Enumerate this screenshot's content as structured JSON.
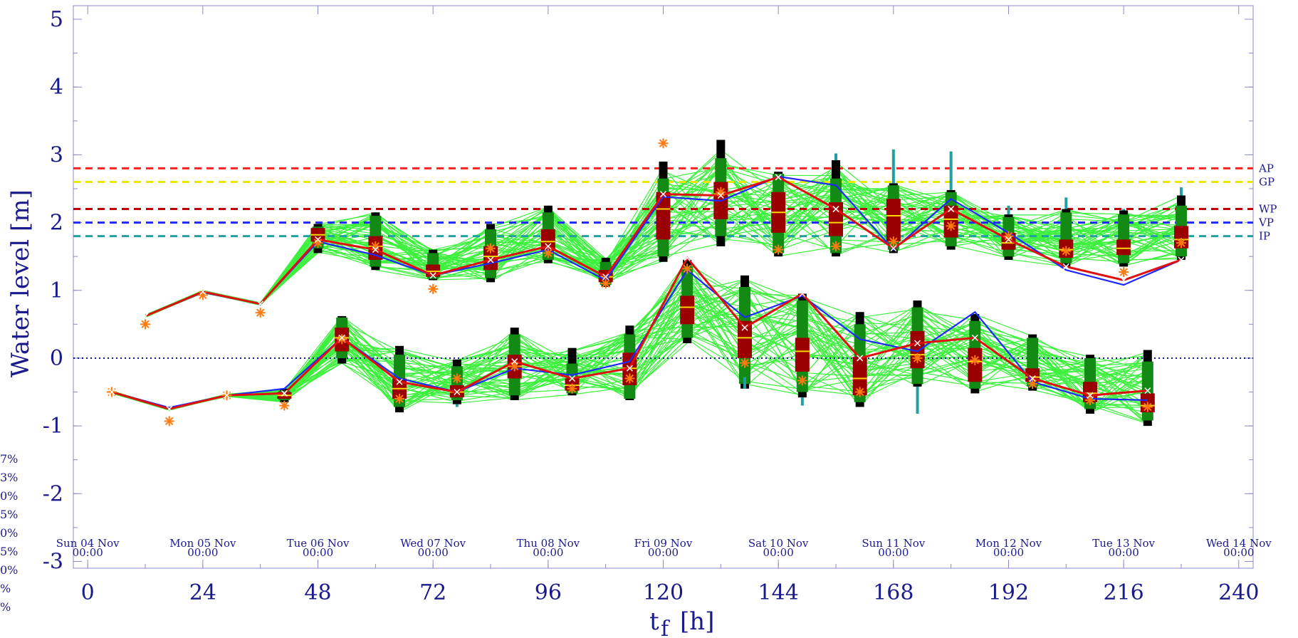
{
  "chart_data": {
    "type": "line",
    "title": "",
    "xlabel": "t",
    "xlabel_sub": "f",
    "xlabel_unit": "[h]",
    "ylabel": "Water level [m]",
    "xlim": [
      -3,
      243
    ],
    "ylim": [
      -3.1,
      5.2
    ],
    "xticks": [
      0,
      24,
      48,
      72,
      96,
      120,
      144,
      168,
      192,
      216,
      240
    ],
    "yticks": [
      -3,
      -2,
      -1,
      0,
      1,
      2,
      3,
      4,
      5
    ],
    "date_labels": [
      {
        "x": 0,
        "day": "Sun 04 Nov",
        "time": "00:00"
      },
      {
        "x": 24,
        "day": "Mon 05 Nov",
        "time": "00:00"
      },
      {
        "x": 48,
        "day": "Tue 06 Nov",
        "time": "00:00"
      },
      {
        "x": 72,
        "day": "Wed 07 Nov",
        "time": "00:00"
      },
      {
        "x": 96,
        "day": "Thu 08 Nov",
        "time": "00:00"
      },
      {
        "x": 120,
        "day": "Fri 09 Nov",
        "time": "00:00"
      },
      {
        "x": 144,
        "day": "Sat 10 Nov",
        "time": "00:00"
      },
      {
        "x": 168,
        "day": "Sun 11 Nov",
        "time": "00:00"
      },
      {
        "x": 192,
        "day": "Mon 12 Nov",
        "time": "00:00"
      },
      {
        "x": 216,
        "day": "Tue 13 Nov",
        "time": "00:00"
      },
      {
        "x": 240,
        "day": "Wed 14 Nov",
        "time": "00:00"
      }
    ],
    "thresholds": [
      {
        "label": "AP",
        "value": 2.8,
        "color": "#ff2020"
      },
      {
        "label": "GP",
        "value": 2.6,
        "color": "#e8e800"
      },
      {
        "label": "WP",
        "value": 2.2,
        "color": "#c00000"
      },
      {
        "label": "VP",
        "value": 2.0,
        "color": "#1e28ff"
      },
      {
        "label": "IP",
        "value": 1.8,
        "color": "#20a0a0"
      }
    ],
    "zero_line": {
      "value": 0,
      "color": "#1010a0"
    },
    "left_fragments": [
      "7%",
      "3%",
      "0%",
      "5%",
      "0%",
      "5%",
      "0%",
      "%",
      "%"
    ],
    "high_water": {
      "x": [
        12,
        24,
        36,
        48,
        60,
        72,
        84,
        96,
        108,
        120,
        132,
        144,
        156,
        168,
        180,
        192,
        204,
        216,
        228
      ],
      "red": [
        0.62,
        0.98,
        0.8,
        1.75,
        1.6,
        1.22,
        1.45,
        1.65,
        1.2,
        2.42,
        2.4,
        2.67,
        2.2,
        1.62,
        2.2,
        1.75,
        1.35,
        1.15,
        1.45
      ],
      "blue": [
        0.62,
        0.97,
        0.8,
        1.72,
        1.52,
        1.22,
        1.4,
        1.6,
        1.15,
        2.38,
        2.32,
        2.68,
        2.55,
        1.6,
        2.35,
        1.85,
        1.3,
        1.08,
        1.45
      ],
      "observed": [
        0.5,
        0.93,
        0.67,
        1.7,
        1.65,
        1.02,
        1.62,
        1.55,
        1.1,
        3.17,
        2.45,
        1.6,
        1.65,
        1.72,
        1.95,
        1.8,
        1.58,
        1.27,
        1.7
      ],
      "box": [
        null,
        null,
        null,
        [
          1.55,
          1.62,
          1.72,
          1.82,
          1.92,
          1.94,
          1.98
        ],
        [
          1.3,
          1.35,
          1.45,
          1.65,
          1.8,
          2.1,
          2.15
        ],
        [
          1.15,
          1.17,
          1.2,
          1.28,
          1.38,
          1.55,
          1.6
        ],
        [
          1.12,
          1.18,
          1.3,
          1.5,
          1.65,
          1.9,
          1.98
        ],
        [
          1.4,
          1.45,
          1.58,
          1.72,
          1.9,
          2.15,
          2.25
        ],
        [
          1.05,
          1.08,
          1.12,
          1.2,
          1.3,
          1.42,
          1.48
        ],
        [
          1.42,
          1.5,
          1.75,
          2.2,
          2.45,
          2.65,
          2.9
        ],
        [
          1.65,
          1.8,
          2.05,
          2.42,
          2.6,
          2.95,
          3.22
        ],
        [
          1.5,
          1.55,
          1.85,
          2.15,
          2.45,
          2.72,
          2.75
        ],
        [
          1.5,
          1.55,
          1.8,
          2.0,
          2.3,
          2.65,
          2.92
        ],
        [
          1.55,
          1.6,
          1.72,
          2.1,
          2.35,
          2.55,
          2.58
        ],
        [
          1.6,
          1.65,
          1.78,
          2.05,
          2.25,
          2.45,
          2.48
        ],
        [
          1.45,
          1.5,
          1.6,
          1.7,
          1.85,
          2.08,
          2.12
        ],
        [
          1.35,
          1.4,
          1.48,
          1.6,
          1.75,
          2.15,
          2.2
        ],
        [
          1.35,
          1.4,
          1.52,
          1.62,
          1.75,
          2.12,
          2.18
        ],
        [
          1.45,
          1.5,
          1.62,
          1.75,
          1.95,
          2.25,
          2.4
        ]
      ],
      "whisker_top": [
        null,
        null,
        null,
        null,
        null,
        null,
        null,
        null,
        null,
        null,
        null,
        null,
        3.02,
        3.08,
        3.05,
        2.25,
        2.37,
        2.2,
        2.52
      ]
    },
    "low_water": {
      "x": [
        5,
        17,
        29,
        41,
        53,
        65,
        77,
        89,
        101,
        113,
        125,
        137,
        149,
        161,
        173,
        185,
        197,
        209,
        221
      ],
      "red": [
        -0.5,
        -0.75,
        -0.55,
        -0.52,
        0.3,
        -0.35,
        -0.5,
        -0.05,
        -0.3,
        -0.15,
        1.48,
        0.45,
        0.95,
        0.0,
        0.22,
        0.3,
        -0.3,
        -0.55,
        -0.48
      ],
      "blue": [
        -0.5,
        -0.73,
        -0.55,
        -0.45,
        0.3,
        -0.3,
        -0.5,
        -0.15,
        -0.25,
        -0.05,
        1.3,
        0.6,
        0.92,
        0.28,
        0.1,
        0.68,
        -0.35,
        -0.6,
        -0.62
      ],
      "observed": [
        -0.5,
        -0.93,
        -0.55,
        -0.7,
        0.28,
        -0.6,
        -0.3,
        -0.12,
        -0.45,
        -0.3,
        1.32,
        -0.07,
        -0.33,
        -0.5,
        0.0,
        -0.03,
        -0.38,
        -0.62,
        -0.72
      ],
      "box": [
        null,
        null,
        null,
        [
          -0.65,
          -0.62,
          -0.6,
          -0.55,
          -0.5,
          -0.48,
          -0.45
        ],
        [
          -0.08,
          0.0,
          0.1,
          0.3,
          0.45,
          0.6,
          0.62
        ],
        [
          -0.8,
          -0.72,
          -0.6,
          -0.45,
          -0.3,
          0.05,
          0.18
        ],
        [
          -0.68,
          -0.62,
          -0.58,
          -0.5,
          -0.4,
          -0.12,
          -0.02
        ],
        [
          -0.62,
          -0.55,
          -0.3,
          -0.12,
          0.05,
          0.35,
          0.45
        ],
        [
          -0.55,
          -0.52,
          -0.48,
          -0.4,
          -0.3,
          -0.08,
          0.15
        ],
        [
          -0.62,
          -0.6,
          -0.4,
          -0.15,
          0.08,
          0.35,
          0.48
        ],
        [
          0.22,
          0.3,
          0.5,
          0.75,
          0.92,
          1.35,
          1.45
        ],
        [
          -0.45,
          -0.38,
          0.0,
          0.3,
          0.55,
          1.05,
          1.22
        ],
        [
          -0.58,
          -0.5,
          -0.2,
          0.1,
          0.3,
          0.85,
          0.95
        ],
        [
          -0.72,
          -0.65,
          -0.55,
          -0.3,
          0.02,
          0.5,
          0.68
        ],
        [
          -0.42,
          -0.38,
          -0.15,
          0.05,
          0.4,
          0.75,
          0.85
        ],
        [
          -0.52,
          -0.45,
          -0.35,
          -0.05,
          0.15,
          0.55,
          0.65
        ],
        [
          -0.48,
          -0.42,
          -0.35,
          -0.28,
          -0.15,
          0.3,
          0.35
        ],
        [
          -0.82,
          -0.75,
          -0.65,
          -0.52,
          -0.35,
          0.0,
          0.05
        ],
        [
          -1.0,
          -0.92,
          -0.8,
          -0.7,
          -0.52,
          -0.05,
          0.12
        ]
      ],
      "whisker_bottom": [
        null,
        null,
        null,
        null,
        null,
        null,
        -0.72,
        null,
        null,
        null,
        null,
        -0.28,
        -0.7,
        null,
        -0.82,
        null,
        null,
        null,
        null
      ]
    },
    "ensemble_count": 50
  }
}
